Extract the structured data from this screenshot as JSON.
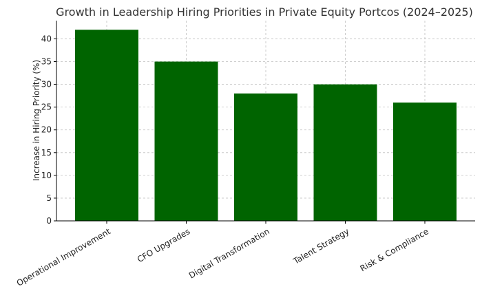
{
  "chart_data": {
    "type": "bar",
    "title": "Growth in Leadership Hiring Priorities in Private Equity Portcos (2024–2025)",
    "xlabel": "",
    "ylabel": "Increase in Hiring Priority (%)",
    "categories": [
      "Operational Improvement",
      "CFO Upgrades",
      "Digital Transformation",
      "Talent Strategy",
      "Risk & Compliance"
    ],
    "values": [
      42,
      35,
      28,
      30,
      26
    ],
    "ylim": [
      0,
      44
    ],
    "yticks": [
      0,
      5,
      10,
      15,
      20,
      25,
      30,
      35,
      40
    ],
    "grid": true,
    "bar_color": "#006400"
  }
}
